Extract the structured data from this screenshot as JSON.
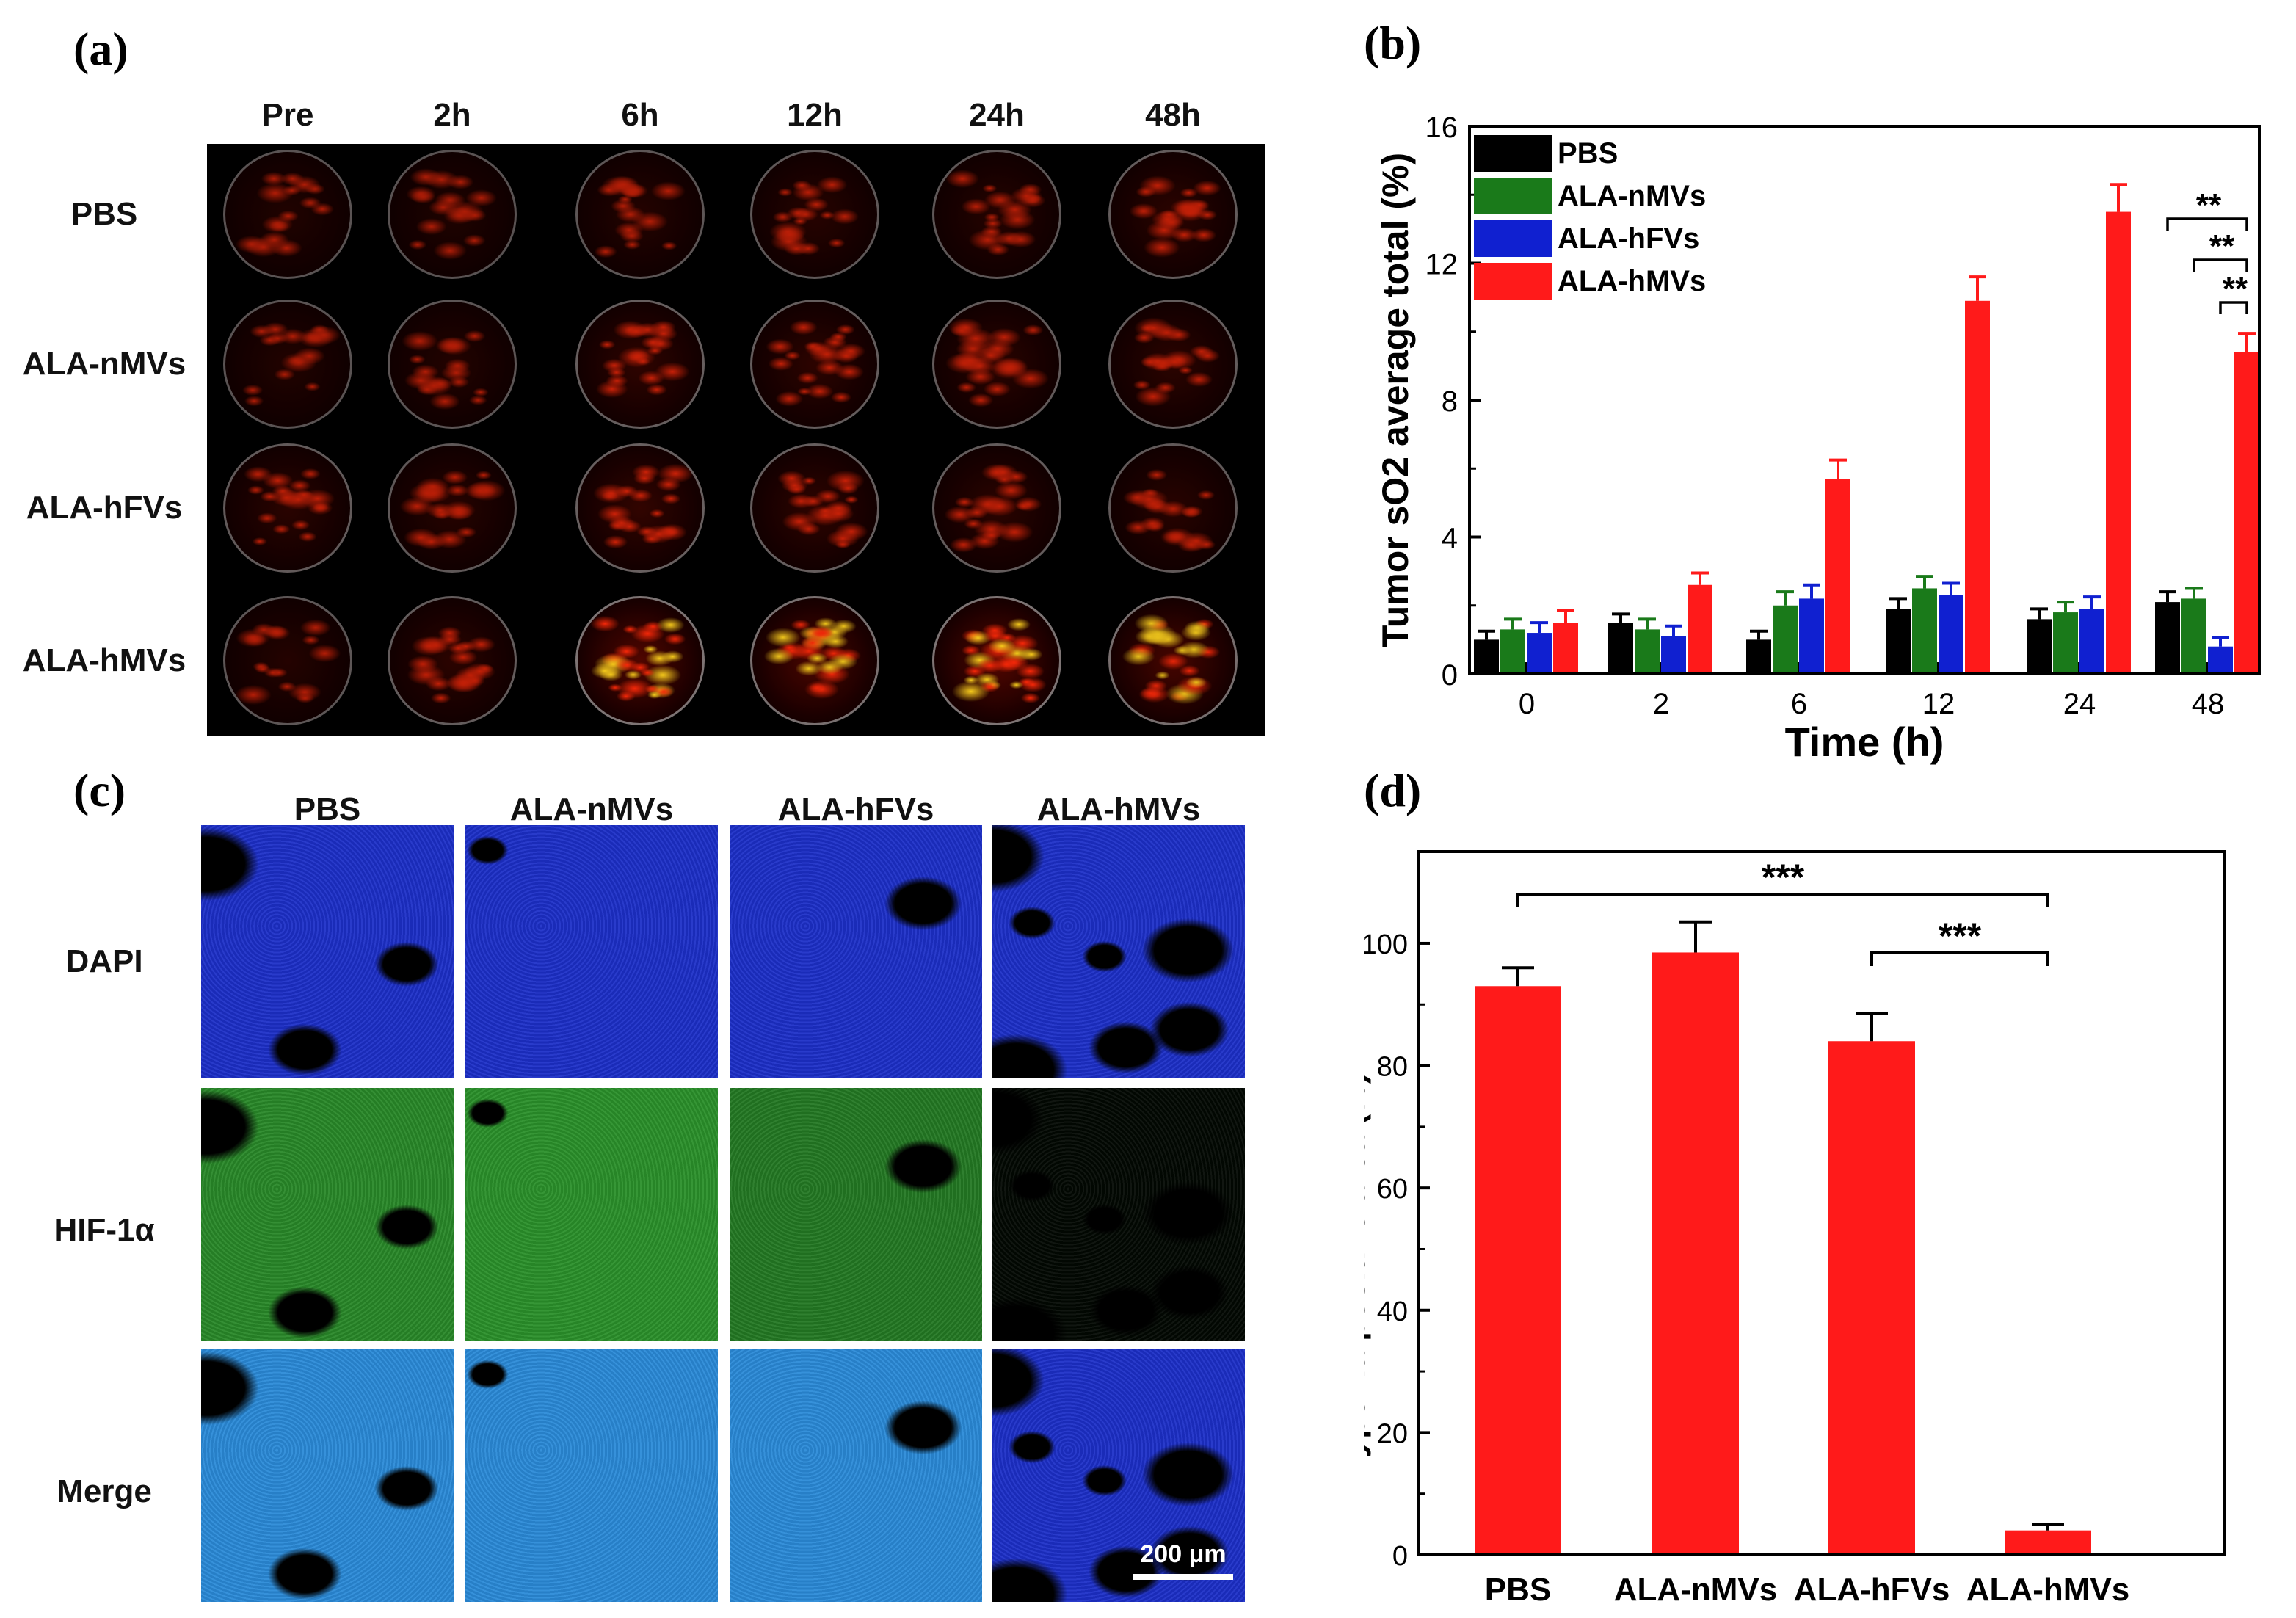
{
  "panels": {
    "a": {
      "label": "(a)"
    },
    "b": {
      "label": "(b)"
    },
    "c": {
      "label": "(c)"
    },
    "d": {
      "label": "(d)"
    }
  },
  "panel_a": {
    "columns": [
      "Pre",
      "2h",
      "6h",
      "12h",
      "24h",
      "48h"
    ],
    "rows": [
      "PBS",
      "ALA-nMVs",
      "ALA-hFVs",
      "ALA-hMVs"
    ],
    "intensity": [
      [
        0.3,
        0.28,
        0.36,
        0.4,
        0.38,
        0.46
      ],
      [
        0.32,
        0.34,
        0.52,
        0.48,
        0.44,
        0.46
      ],
      [
        0.44,
        0.4,
        0.55,
        0.5,
        0.46,
        0.42
      ],
      [
        0.36,
        0.46,
        0.9,
        0.85,
        0.92,
        0.8
      ]
    ],
    "colors": {
      "background": "#000000",
      "signal": "#ff2a0a",
      "hot": "#ffd21e"
    }
  },
  "panel_c": {
    "columns": [
      "PBS",
      "ALA-nMVs",
      "ALA-hFVs",
      "ALA-hMVs"
    ],
    "rows": [
      "DAPI",
      "HIF-1α",
      "Merge"
    ],
    "scale_bar": "200 μm",
    "colors": {
      "dapi": "#1c2fc8",
      "hif": "#2fa02f",
      "merge": "#2a8ad8"
    },
    "hif_intensity": [
      0.85,
      0.9,
      0.75,
      0.05
    ]
  },
  "chart_data": [
    {
      "type": "bar",
      "title": "",
      "xlabel": "Time (h)",
      "ylabel": "Tumor sO2 average total (%)",
      "categories": [
        "0",
        "2",
        "6",
        "12",
        "24",
        "48"
      ],
      "ylim": [
        0,
        16
      ],
      "yticks": [
        "0",
        "4",
        "8",
        "12",
        "16"
      ],
      "legend_position": "top-left",
      "series": [
        {
          "name": "PBS",
          "color": "#000000",
          "values": [
            1.0,
            1.5,
            1.0,
            1.9,
            1.6,
            2.1
          ],
          "errors": [
            0.25,
            0.25,
            0.25,
            0.3,
            0.3,
            0.3
          ]
        },
        {
          "name": "ALA-nMVs",
          "color": "#1a7a1a",
          "values": [
            1.3,
            1.3,
            2.0,
            2.5,
            1.8,
            2.2
          ],
          "errors": [
            0.3,
            0.3,
            0.4,
            0.35,
            0.3,
            0.3
          ]
        },
        {
          "name": "ALA-hFVs",
          "color": "#1020d0",
          "values": [
            1.2,
            1.1,
            2.2,
            2.3,
            1.9,
            0.8
          ],
          "errors": [
            0.3,
            0.3,
            0.4,
            0.35,
            0.35,
            0.25
          ]
        },
        {
          "name": "ALA-hMVs",
          "color": "#ff1a1a",
          "values": [
            1.5,
            2.6,
            5.7,
            10.9,
            13.5,
            9.4
          ],
          "errors": [
            0.35,
            0.35,
            0.55,
            0.7,
            0.8,
            0.55
          ]
        }
      ],
      "annotations": [
        "**",
        "**",
        "**"
      ]
    },
    {
      "type": "bar",
      "title": "",
      "xlabel": "",
      "ylabel": "Hypoxia positive area (%)",
      "categories": [
        "PBS",
        "ALA-nMVs",
        "ALA-hFVs",
        "ALA-hMVs"
      ],
      "ylim": [
        0,
        115
      ],
      "yticks": [
        "0",
        "20",
        "40",
        "60",
        "80",
        "100"
      ],
      "series": [
        {
          "name": "Hypoxia positive area",
          "color": "#ff1a1a",
          "values": [
            93,
            98.5,
            84,
            4
          ],
          "errors": [
            3,
            5,
            4.5,
            1
          ]
        }
      ],
      "annotations": [
        "***",
        "***"
      ]
    }
  ]
}
